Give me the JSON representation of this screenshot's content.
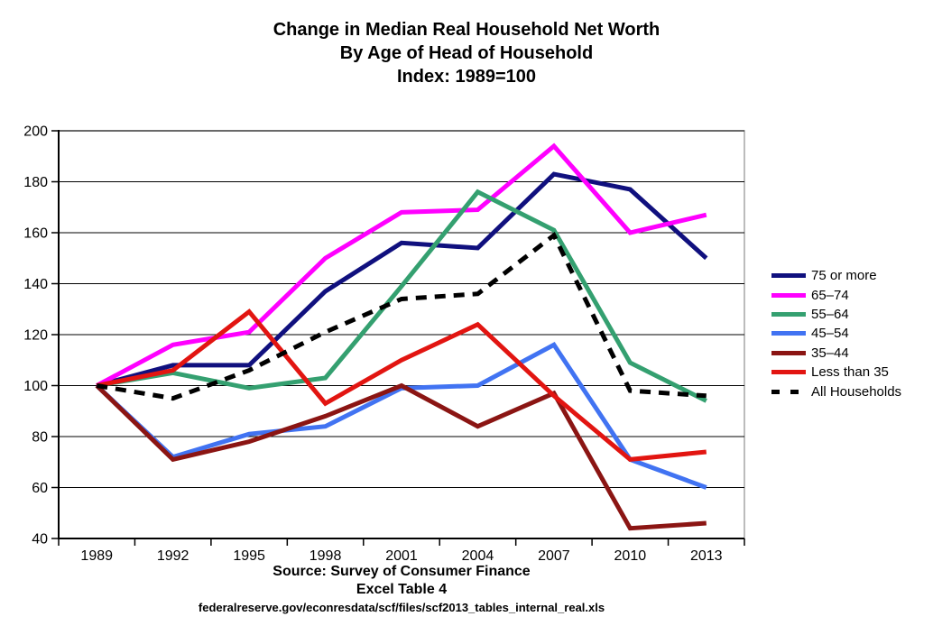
{
  "title": {
    "line1": "Change in Median Real Household Net Worth",
    "line2": "By Age of Head of Household",
    "line3": "Index: 1989=100"
  },
  "footer": {
    "source": "Source: Survey of Consumer Finance",
    "table": "Excel Table 4",
    "url": "federalreserve.gov/econresdata/scf/files/scf2013_tables_internal_real.xls"
  },
  "chart_data": {
    "type": "line",
    "categories": [
      "1989",
      "1992",
      "1995",
      "1998",
      "2001",
      "2004",
      "2007",
      "2010",
      "2013"
    ],
    "series": [
      {
        "name": "75 or more",
        "color": "#10107E",
        "dashed": false,
        "values": [
          100,
          108,
          108,
          137,
          156,
          154,
          183,
          177,
          150
        ]
      },
      {
        "name": "65–74",
        "color": "#FF00FF",
        "dashed": false,
        "values": [
          100,
          116,
          121,
          150,
          168,
          169,
          194,
          160,
          167
        ]
      },
      {
        "name": "55–64",
        "color": "#34A070",
        "dashed": false,
        "values": [
          100,
          105,
          99,
          103,
          139,
          176,
          161,
          109,
          94
        ]
      },
      {
        "name": "45–54",
        "color": "#4173F2",
        "dashed": false,
        "values": [
          100,
          72,
          81,
          84,
          99,
          100,
          116,
          71,
          60
        ]
      },
      {
        "name": "35–44",
        "color": "#8B1513",
        "dashed": false,
        "values": [
          100,
          71,
          78,
          88,
          100,
          84,
          97,
          44,
          46
        ]
      },
      {
        "name": "Less than 35",
        "color": "#E21511",
        "dashed": false,
        "values": [
          100,
          106,
          129,
          93,
          110,
          124,
          96,
          71,
          74
        ]
      },
      {
        "name": "All Households",
        "color": "#000000",
        "dashed": true,
        "values": [
          100,
          95,
          106,
          121,
          134,
          136,
          159,
          98,
          96
        ]
      }
    ],
    "ylim": [
      40,
      200
    ],
    "ytick_step": 20,
    "grid": true,
    "legend_position": "right",
    "axis_color": "#000000",
    "plot_border_color": "#A6A6A6"
  }
}
